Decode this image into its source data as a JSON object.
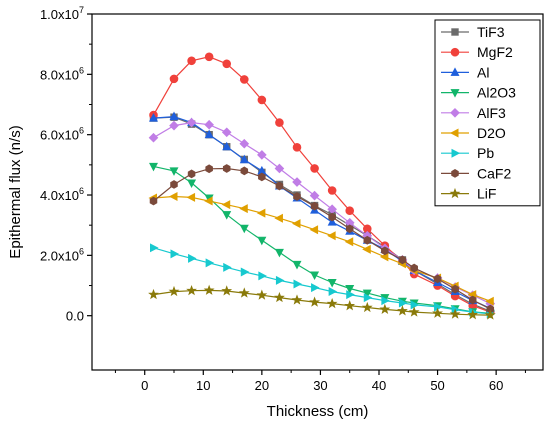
{
  "chart_data": {
    "type": "line",
    "title": "",
    "xlabel": "Thickness (cm)",
    "ylabel": "Epithermal flux (n/s)",
    "xlim": [
      -9,
      68
    ],
    "ylim": [
      -1800000,
      10000000
    ],
    "x_ticks": [
      0,
      10,
      20,
      30,
      40,
      50,
      60
    ],
    "y_ticks": [
      {
        "value": 0,
        "mant": "0.0",
        "exp": ""
      },
      {
        "value": 2000000,
        "mant": "2.0x10",
        "exp": "6"
      },
      {
        "value": 4000000,
        "mant": "4.0x10",
        "exp": "6"
      },
      {
        "value": 6000000,
        "mant": "6.0x10",
        "exp": "6"
      },
      {
        "value": 8000000,
        "mant": "8.0x10",
        "exp": "6"
      },
      {
        "value": 10000000,
        "mant": "1.0x10",
        "exp": "7"
      }
    ],
    "legend_position": "top-right",
    "series": [
      {
        "name": "TiF3",
        "color": "#6b6b6b",
        "marker": "square",
        "x": [
          1.5,
          5,
          8,
          11,
          14,
          17,
          20,
          23,
          26,
          29,
          32,
          35,
          38,
          41,
          44,
          46,
          50,
          53,
          56,
          59
        ],
        "y": [
          6550000,
          6580000,
          6350000,
          6000000,
          5600000,
          5180000,
          4750000,
          4350000,
          4000000,
          3650000,
          3350000,
          3000000,
          2650000,
          2280000,
          1850000,
          1500000,
          1050000,
          700000,
          380000,
          150000
        ]
      },
      {
        "name": "MgF2",
        "color": "#f0413b",
        "marker": "circle",
        "x": [
          1.5,
          5,
          8,
          11,
          14,
          17,
          20,
          23,
          26,
          29,
          32,
          35,
          38,
          41,
          44,
          46,
          50,
          53,
          56,
          59
        ],
        "y": [
          6650000,
          7850000,
          8450000,
          8580000,
          8350000,
          7830000,
          7150000,
          6400000,
          5580000,
          4880000,
          4150000,
          3480000,
          2880000,
          2320000,
          1800000,
          1380000,
          1000000,
          650000,
          330000,
          120000
        ]
      },
      {
        "name": "Al",
        "color": "#1f5fdc",
        "marker": "triangle-up",
        "x": [
          1.5,
          5,
          8,
          11,
          14,
          17,
          20,
          23,
          26,
          29,
          32,
          35,
          38,
          41,
          44,
          46,
          50,
          53,
          56,
          59
        ],
        "y": [
          6550000,
          6600000,
          6400000,
          6000000,
          5600000,
          5170000,
          4800000,
          4300000,
          3900000,
          3500000,
          3100000,
          2800000,
          2500000,
          2200000,
          1800000,
          1500000,
          1100000,
          800000,
          500000,
          250000
        ]
      },
      {
        "name": "Al2O3",
        "color": "#12b56a",
        "marker": "triangle-down",
        "x": [
          1.5,
          5,
          8,
          11,
          14,
          17,
          20,
          23,
          26,
          29,
          32,
          35,
          38,
          41,
          44,
          46,
          50,
          53,
          56,
          59
        ],
        "y": [
          4950000,
          4800000,
          4400000,
          3900000,
          3350000,
          2900000,
          2500000,
          2100000,
          1700000,
          1350000,
          1100000,
          900000,
          750000,
          600000,
          480000,
          420000,
          330000,
          230000,
          130000,
          80000
        ]
      },
      {
        "name": "AlF3",
        "color": "#c07de6",
        "marker": "diamond",
        "x": [
          1.5,
          5,
          8,
          11,
          14,
          17,
          20,
          23,
          26,
          29,
          32,
          35,
          38,
          41,
          44,
          46,
          50,
          53,
          56,
          59
        ],
        "y": [
          5900000,
          6300000,
          6400000,
          6330000,
          6080000,
          5700000,
          5330000,
          4880000,
          4430000,
          3980000,
          3530000,
          3080000,
          2650000,
          2230000,
          1850000,
          1500000,
          1250000,
          950000,
          680000,
          400000
        ]
      },
      {
        "name": "D2O",
        "color": "#e0a000",
        "marker": "triangle-left",
        "x": [
          1.5,
          5,
          8,
          11,
          14,
          17,
          20,
          23,
          26,
          29,
          32,
          35,
          38,
          41,
          44,
          46,
          50,
          53,
          56,
          59
        ],
        "y": [
          3900000,
          3950000,
          3920000,
          3800000,
          3680000,
          3550000,
          3400000,
          3230000,
          3050000,
          2850000,
          2650000,
          2450000,
          2200000,
          1950000,
          1720000,
          1500000,
          1250000,
          980000,
          700000,
          480000
        ]
      },
      {
        "name": "Pb",
        "color": "#17c9cf",
        "marker": "triangle-right",
        "x": [
          1.5,
          5,
          8,
          11,
          14,
          17,
          20,
          23,
          26,
          29,
          32,
          35,
          38,
          41,
          44,
          46,
          50,
          53,
          56,
          59
        ],
        "y": [
          2250000,
          2050000,
          1900000,
          1750000,
          1600000,
          1450000,
          1320000,
          1170000,
          1050000,
          930000,
          800000,
          700000,
          600000,
          500000,
          420000,
          360000,
          290000,
          200000,
          120000,
          60000
        ]
      },
      {
        "name": "CaF2",
        "color": "#7b4a3b",
        "marker": "hexagon",
        "x": [
          1.5,
          5,
          8,
          11,
          14,
          17,
          20,
          23,
          26,
          29,
          32,
          35,
          38,
          41,
          44,
          46,
          50,
          53,
          56,
          59
        ],
        "y": [
          3800000,
          4350000,
          4700000,
          4870000,
          4880000,
          4800000,
          4600000,
          4300000,
          3950000,
          3630000,
          3270000,
          2880000,
          2500000,
          2150000,
          1850000,
          1580000,
          1220000,
          880000,
          520000,
          220000
        ]
      },
      {
        "name": "LiF",
        "color": "#8a7a0a",
        "marker": "star",
        "x": [
          1.5,
          5,
          8,
          11,
          14,
          17,
          20,
          23,
          26,
          29,
          32,
          35,
          38,
          41,
          44,
          46,
          50,
          53,
          56,
          59
        ],
        "y": [
          700000,
          800000,
          830000,
          840000,
          820000,
          750000,
          680000,
          600000,
          520000,
          450000,
          400000,
          330000,
          270000,
          210000,
          160000,
          120000,
          80000,
          50000,
          30000,
          20000
        ]
      }
    ]
  }
}
